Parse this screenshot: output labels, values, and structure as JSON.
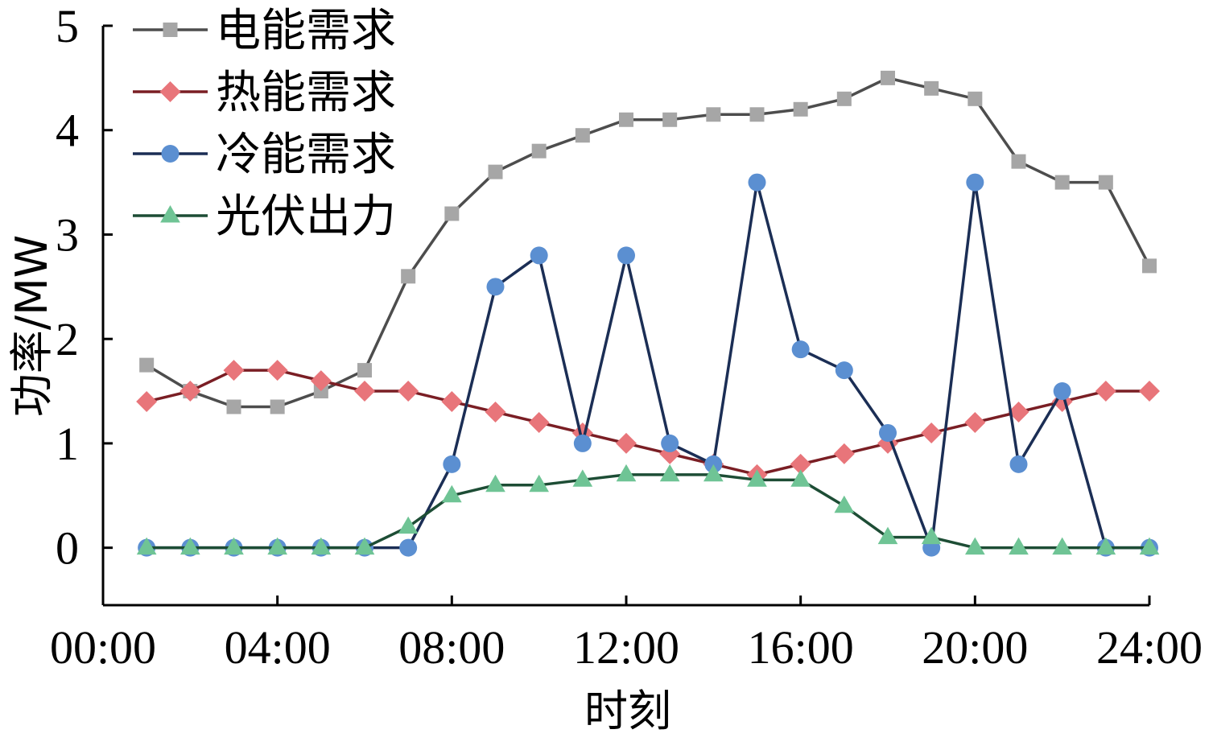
{
  "chart_data": {
    "type": "line",
    "xlabel": "时刻",
    "ylabel": "功率/MW",
    "ylim": [
      -0.55,
      5
    ],
    "xlim": [
      0,
      24
    ],
    "x_ticks": [
      0,
      4,
      8,
      12,
      16,
      20,
      24
    ],
    "x_tick_labels": [
      "00:00",
      "04:00",
      "08:00",
      "12:00",
      "16:00",
      "20:00",
      "24:00"
    ],
    "y_ticks": [
      0,
      1,
      2,
      3,
      4,
      5
    ],
    "y_tick_labels": [
      "0",
      "1",
      "2",
      "3",
      "4",
      "5"
    ],
    "grid": false,
    "legend_position": "top-left",
    "x": [
      1,
      2,
      3,
      4,
      5,
      6,
      7,
      8,
      9,
      10,
      11,
      12,
      13,
      14,
      15,
      16,
      17,
      18,
      19,
      20,
      21,
      22,
      23,
      24
    ],
    "series": [
      {
        "name": "电能需求",
        "line_color": "#4d4d4d",
        "marker_color": "#a6a6a6",
        "marker": "square",
        "values": [
          1.75,
          1.5,
          1.35,
          1.35,
          1.5,
          1.7,
          2.6,
          3.2,
          3.6,
          3.8,
          3.95,
          4.1,
          4.1,
          4.15,
          4.15,
          4.2,
          4.3,
          4.5,
          4.4,
          4.3,
          3.7,
          3.5,
          3.5,
          2.7
        ]
      },
      {
        "name": "热能需求",
        "line_color": "#7a1e24",
        "marker_color": "#e8757a",
        "marker": "diamond",
        "values": [
          1.4,
          1.5,
          1.7,
          1.7,
          1.6,
          1.5,
          1.5,
          1.4,
          1.3,
          1.2,
          1.1,
          1.0,
          0.9,
          0.8,
          0.7,
          0.8,
          0.9,
          1.0,
          1.1,
          1.2,
          1.3,
          1.4,
          1.5,
          1.5
        ]
      },
      {
        "name": "冷能需求",
        "line_color": "#1b2e55",
        "marker_color": "#5b8fd1",
        "marker": "circle",
        "values": [
          0,
          0,
          0,
          0,
          0,
          0,
          0,
          0.8,
          2.5,
          2.8,
          1.0,
          2.8,
          1.0,
          0.8,
          3.5,
          1.9,
          1.7,
          1.1,
          0,
          3.5,
          0.8,
          1.5,
          0,
          0
        ]
      },
      {
        "name": "光伏出力",
        "line_color": "#1d4d35",
        "marker_color": "#6fc495",
        "marker": "triangle",
        "values": [
          0,
          0,
          0,
          0,
          0,
          0,
          0.2,
          0.5,
          0.6,
          0.6,
          0.65,
          0.7,
          0.7,
          0.7,
          0.65,
          0.65,
          0.4,
          0.1,
          0.1,
          0,
          0,
          0,
          0,
          0
        ]
      }
    ]
  }
}
